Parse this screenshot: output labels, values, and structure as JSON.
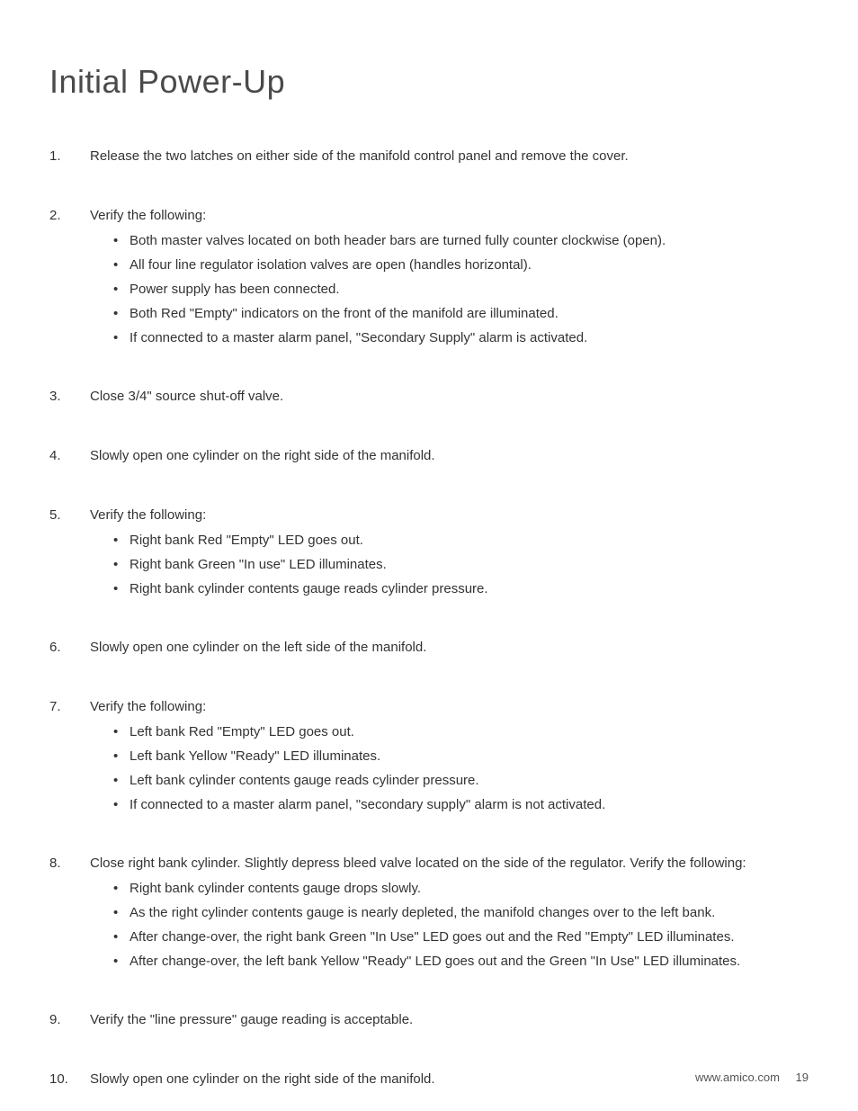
{
  "page": {
    "title": "Initial Power-Up",
    "footer_url": "www.amico.com",
    "footer_page": "19"
  },
  "steps": [
    {
      "num": "1.",
      "text": "Release the two latches on either side of the manifold control panel and remove the cover.",
      "justified": false,
      "subs": []
    },
    {
      "num": "2.",
      "text": "Verify the following:",
      "justified": false,
      "subs": [
        "Both master valves located on both header bars are turned fully counter clockwise (open).",
        "All four line regulator isolation valves are open (handles horizontal).",
        "Power supply has been connected.",
        "Both Red \"Empty\" indicators on the front of the manifold are illuminated.",
        "If connected to a master alarm panel, \"Secondary Supply\" alarm is activated."
      ]
    },
    {
      "num": "3.",
      "text": "Close 3/4\" source shut-off valve.",
      "justified": false,
      "subs": []
    },
    {
      "num": "4.",
      "text": "Slowly open one cylinder on the right side of the manifold.",
      "justified": false,
      "subs": []
    },
    {
      "num": "5.",
      "text": "Verify the following:",
      "justified": false,
      "subs": [
        "Right bank Red \"Empty\" LED goes out.",
        "Right bank Green \"In use\" LED illuminates.",
        "Right bank cylinder contents gauge reads cylinder pressure."
      ]
    },
    {
      "num": "6.",
      "text": "Slowly open one cylinder on the left side of the manifold.",
      "justified": false,
      "subs": []
    },
    {
      "num": "7.",
      "text": "Verify the following:",
      "justified": false,
      "subs": [
        "Left bank Red \"Empty\" LED goes out.",
        "Left bank Yellow \"Ready\" LED illuminates.",
        "Left bank cylinder contents gauge reads cylinder pressure.",
        "If connected to a master alarm panel, \"secondary supply\" alarm is not activated."
      ]
    },
    {
      "num": "8.",
      "text": "Close right bank cylinder. Slightly depress bleed valve located on the side of the regulator. Verify the following:",
      "justified": true,
      "subs": [
        "Right bank cylinder contents gauge drops slowly.",
        "As the right cylinder contents gauge is nearly depleted, the manifold changes over to the left bank.",
        "After change-over, the right bank Green \"In Use\" LED goes out and the Red \"Empty\" LED illuminates.",
        "After change-over, the left bank Yellow \"Ready\" LED goes out and the Green \"In Use\" LED illuminates."
      ]
    },
    {
      "num": "9.",
      "text": "Verify the \"line pressure\" gauge reading is acceptable.",
      "justified": false,
      "subs": []
    },
    {
      "num": "10.",
      "text": "Slowly open one cylinder on the right side of the manifold.",
      "justified": false,
      "subs": []
    }
  ]
}
